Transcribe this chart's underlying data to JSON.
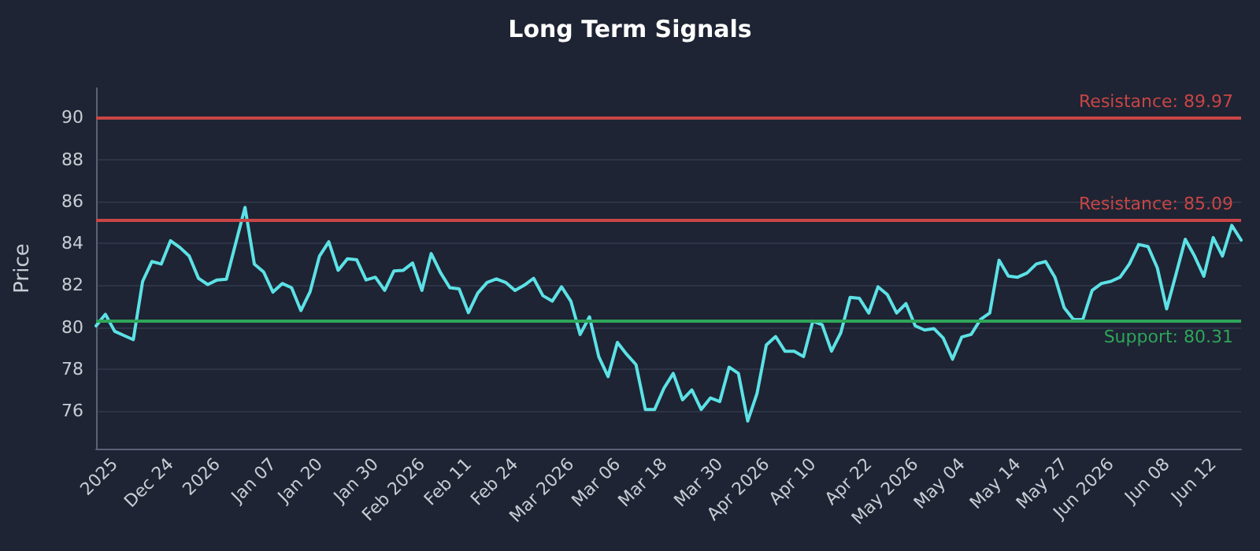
{
  "chart_data": {
    "type": "line",
    "title": "Long Term Signals",
    "ylabel": "Price",
    "categories": [
      null,
      null,
      "2025",
      null,
      null,
      null,
      null,
      null,
      "Dec 24",
      null,
      null,
      null,
      null,
      "2026",
      null,
      null,
      null,
      null,
      null,
      "Jan 07",
      null,
      null,
      null,
      null,
      "Jan 20",
      null,
      null,
      null,
      null,
      null,
      "Jan 30",
      null,
      null,
      null,
      null,
      "Feb 2026",
      null,
      null,
      null,
      null,
      "Feb 11",
      null,
      null,
      null,
      null,
      "Feb 24",
      null,
      null,
      null,
      null,
      null,
      "Mar 2026",
      null,
      null,
      null,
      null,
      "Mar 06",
      null,
      null,
      null,
      null,
      "Mar 18",
      null,
      null,
      null,
      null,
      null,
      "Mar 30",
      null,
      null,
      null,
      null,
      "Apr 2026",
      null,
      null,
      null,
      null,
      "Apr 10",
      null,
      null,
      null,
      null,
      null,
      "Apr 22",
      null,
      null,
      null,
      null,
      "May 2026",
      null,
      null,
      null,
      null,
      "May 04",
      null,
      null,
      null,
      null,
      null,
      "May 14",
      null,
      null,
      null,
      null,
      "May 27",
      null,
      null,
      null,
      null,
      "Jun 2026",
      null,
      null,
      null,
      null,
      null,
      "Jun 08",
      null,
      null,
      null,
      null,
      "Jun 12",
      null,
      null,
      null
    ],
    "series": [
      {
        "color": "#5ce1e6",
        "values": [
          80.06,
          80.61,
          79.8,
          79.6,
          79.4,
          82.18,
          83.13,
          83.01,
          84.12,
          83.8,
          83.39,
          82.33,
          82.03,
          82.25,
          82.28,
          84.0,
          85.71,
          83.01,
          82.63,
          81.67,
          82.08,
          81.88,
          80.79,
          81.7,
          83.39,
          84.07,
          82.71,
          83.26,
          83.21,
          82.25,
          82.38,
          81.75,
          82.68,
          82.71,
          83.06,
          81.75,
          83.51,
          82.6,
          81.88,
          81.82,
          80.69,
          81.62,
          82.13,
          82.3,
          82.13,
          81.75,
          82.0,
          82.33,
          81.5,
          81.24,
          81.92,
          81.24,
          79.65,
          80.49,
          78.59,
          77.64,
          79.27,
          78.7,
          78.21,
          76.07,
          76.07,
          77.08,
          77.79,
          76.53,
          77.0,
          76.07,
          76.62,
          76.45,
          78.09,
          77.79,
          75.52,
          76.83,
          79.15,
          79.55,
          78.85,
          78.85,
          78.59,
          80.29,
          80.11,
          78.85,
          79.73,
          81.42,
          81.37,
          80.67,
          81.92,
          81.55,
          80.67,
          81.12,
          80.06,
          79.86,
          79.93,
          79.48,
          78.47,
          79.53,
          79.65,
          80.36,
          80.67,
          83.19,
          82.43,
          82.38,
          82.58,
          83.01,
          83.13,
          82.38,
          80.92,
          80.36,
          80.36,
          81.75,
          82.08,
          82.18,
          82.38,
          83.01,
          83.94,
          83.84,
          82.83,
          80.87,
          82.51,
          84.19,
          83.39,
          82.43,
          84.27,
          83.39,
          84.85,
          84.15
        ]
      }
    ],
    "ylim": [
      74.2,
      91.4
    ],
    "yticks": [
      76,
      78,
      80,
      82,
      84,
      86,
      88,
      90
    ],
    "grid": "y",
    "marker": "none",
    "line_style": "solid",
    "ref_lines": [
      {
        "axis": "y",
        "value": 89.97,
        "label": "Resistance: 89.97",
        "color": "#c94545"
      },
      {
        "axis": "y",
        "value": 85.09,
        "label": "Resistance: 85.09",
        "color": "#c94545"
      },
      {
        "axis": "y",
        "value": 80.31,
        "label": "Support: 80.31",
        "color": "#2ea55a"
      }
    ]
  }
}
